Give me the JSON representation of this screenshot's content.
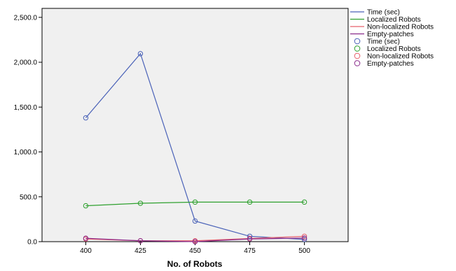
{
  "chart_data": {
    "type": "line",
    "title": "",
    "xlabel": "No. of Robots",
    "ylabel": "",
    "x": [
      400,
      425,
      450,
      475,
      500
    ],
    "x_tick_labels": [
      "400",
      "425",
      "450",
      "475",
      "500"
    ],
    "xlim": [
      380,
      520
    ],
    "ylim": [
      0,
      2600
    ],
    "y_ticks": [
      0,
      500,
      1000,
      1500,
      2000,
      2500
    ],
    "y_tick_labels": [
      "0.0",
      "500.0",
      "1,000.0",
      "1,500.0",
      "2,000.0",
      "2,500.0"
    ],
    "grid": false,
    "legend_position": "right",
    "markers": "open-circle",
    "series": [
      {
        "name": "Time (sec)",
        "color": "#4a62b8",
        "values": [
          1380,
          2095,
          230,
          60,
          25
        ]
      },
      {
        "name": "Localized Robots",
        "color": "#2ea02e",
        "values": [
          400,
          428,
          441,
          441,
          441
        ]
      },
      {
        "name": "Non-localized Robots",
        "color": "#e8606a",
        "values": [
          30,
          10,
          10,
          35,
          60
        ]
      },
      {
        "name": "Empty-patches",
        "color": "#8a2a8c",
        "values": [
          38,
          10,
          0,
          30,
          40
        ]
      }
    ],
    "legend": {
      "line_entries": [
        "Time (sec)",
        "Localized Robots",
        "Non-localized Robots",
        "Empty-patches"
      ],
      "marker_entries": [
        "Time (sec)",
        "Localized Robots",
        "Non-localized Robots",
        "Empty-patches"
      ]
    }
  }
}
